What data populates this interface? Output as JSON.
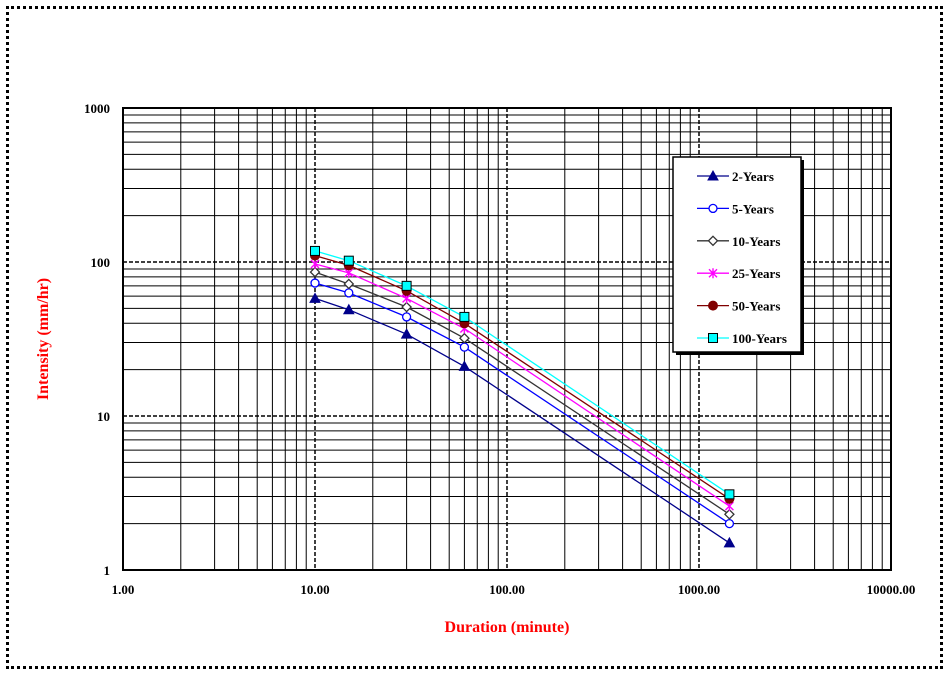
{
  "chart_data": {
    "type": "line",
    "xlabel": "Duration (minute)",
    "ylabel": "Intensity (mm/hr)",
    "xscale": "log",
    "yscale": "log",
    "xlim": [
      1,
      10000
    ],
    "ylim": [
      1,
      1000
    ],
    "x_tick_labels": [
      "1.00",
      "10.00",
      "100.00",
      "1000.00",
      "10000.00"
    ],
    "y_tick_labels": [
      "1",
      "10",
      "100",
      "1000"
    ],
    "grid": true,
    "legend_position": "top-right",
    "label_color": "#ff0000",
    "x": [
      10,
      15,
      30,
      60,
      1440
    ],
    "series": [
      {
        "name": "2-Years",
        "marker": "filled-triangle",
        "color": "#00008b",
        "values": [
          58,
          49,
          34,
          21,
          1.5
        ]
      },
      {
        "name": "5-Years",
        "marker": "open-circle",
        "color": "#0000ff",
        "values": [
          73,
          63,
          44,
          28,
          2.0
        ]
      },
      {
        "name": "10-Years",
        "marker": "open-diamond",
        "color": "#333333",
        "values": [
          86,
          72,
          51,
          32,
          2.3
        ]
      },
      {
        "name": "25-Years",
        "marker": "x-star",
        "color": "#ff00ff",
        "values": [
          97,
          85,
          58,
          37,
          2.6
        ]
      },
      {
        "name": "50-Years",
        "marker": "filled-circle",
        "color": "#800000",
        "values": [
          110,
          95,
          65,
          40,
          2.9
        ]
      },
      {
        "name": "100-Years",
        "marker": "filled-square",
        "color": "#00ffff",
        "values": [
          118,
          102,
          70,
          44,
          3.1
        ]
      }
    ]
  }
}
